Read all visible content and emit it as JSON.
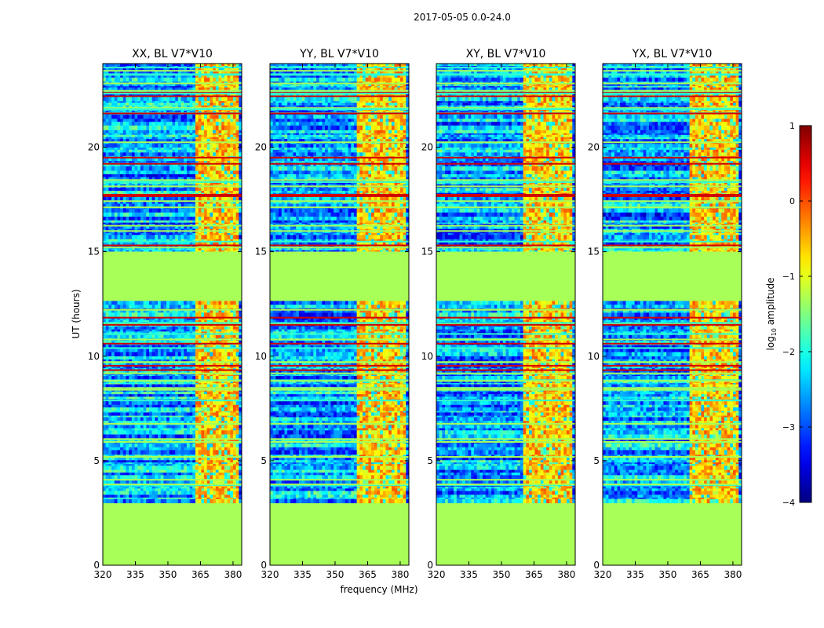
{
  "figure_title": "2017-05-05 0.0-24.0",
  "chart_data": {
    "type": "heatmap",
    "title": "2017-05-05 0.0-24.0",
    "xlabel": "frequency (MHz)",
    "ylabel": "UT (hours)",
    "xlim": [
      320,
      384
    ],
    "ylim": [
      0,
      24
    ],
    "x_ticks": [
      320,
      335,
      350,
      365,
      380
    ],
    "y_ticks": [
      0,
      5,
      10,
      15,
      20
    ],
    "panels": [
      {
        "title": "XX, BL V7*V10",
        "strong_band_start_mhz": 361.5
      },
      {
        "title": "YY, BL V7*V10",
        "strong_band_start_mhz": 360
      },
      {
        "title": "XY, BL V7*V10",
        "strong_band_start_mhz": 360
      },
      {
        "title": "YX, BL V7*V10",
        "strong_band_start_mhz": 360
      }
    ],
    "flagged_ut_ranges": [
      [
        0,
        3.0
      ],
      [
        12.7,
        15.0
      ]
    ],
    "colorbar": {
      "label": "log10 amplitude",
      "label_main": "log",
      "label_sub": "10",
      "label_rest": " amplitude",
      "min": -4,
      "max": 1,
      "ticks": [
        1,
        0,
        -1,
        -2,
        -3,
        -4
      ],
      "tick_labels": [
        "1",
        "0",
        "−1",
        "−2",
        "−3",
        "−4"
      ],
      "colormap": "jet",
      "flag_value": -1.3
    }
  }
}
